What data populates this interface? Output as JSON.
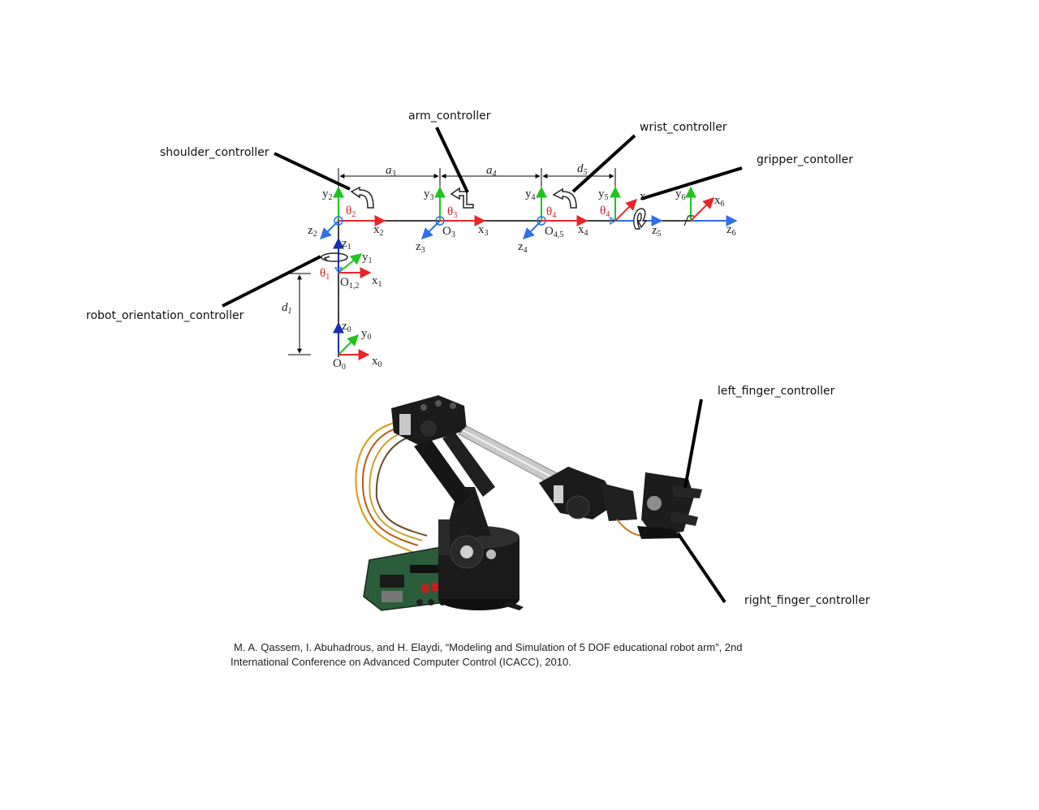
{
  "controllers": {
    "arm": "arm_controller",
    "wrist": "wrist_controller",
    "shoulder": "shoulder_controller",
    "gripper": "gripper_contoller",
    "robot_orientation": "robot_orientation_controller",
    "left_finger": "left_finger_controller",
    "right_finger": "right_finger_controller"
  },
  "frame_labels": {
    "y": "y",
    "z": "z",
    "x": "x",
    "o": "O",
    "theta": "θ",
    "a": "a",
    "d": "d",
    "sub0": "0",
    "sub1": "1",
    "sub2": "2",
    "sub3": "3",
    "sub4": "4",
    "sub5": "5",
    "sub6": "6",
    "sub12": "1,2",
    "sub45": "4,5"
  },
  "citation": {
    "line1": "M. A. Qassem, I. Abuhadrous, and H. Elaydi, “Modeling and Simulation of 5 DOF educational robot arm”, 2nd",
    "line2": "International Conference on Advanced Computer Control (ICACC), 2010."
  },
  "colors": {
    "x_axis": "#e8262a",
    "y_axis": "#1fc41f",
    "z_axis": "#2f6fe8",
    "z_vertical": "#1a2fb0",
    "robot_body": "#1a1a1a",
    "callout_line": "#000000"
  },
  "icons": {
    "rotation_arrow": "curved-rotation-arrow-icon",
    "joint": "revolute-joint-circle-icon"
  }
}
